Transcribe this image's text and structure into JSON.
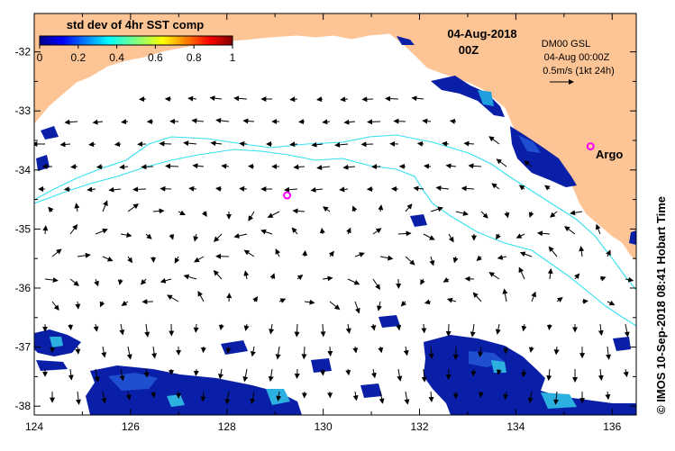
{
  "map": {
    "colorbar_title": "std dev of 4hr SST comp",
    "colorbar_ticks": [
      "0",
      "0.2",
      "0.4",
      "0.6",
      "0.8",
      "1"
    ],
    "colorbar_min": 0,
    "colorbar_max": 1,
    "date_title": "04-Aug-2018",
    "time_title": "00Z",
    "model_name": "DM00 GSL",
    "model_time": "04-Aug 00:00Z",
    "scale_label": "0.5m/s (1kt 24h)",
    "argo_label": "Argo",
    "copyright": "© IMOS 10-Sep-2018 08:41 Hobart Time",
    "lon_ticks": [
      "124",
      "126",
      "128",
      "130",
      "132",
      "134",
      "136"
    ],
    "lat_ticks": [
      "-32",
      "-33",
      "-34",
      "-35",
      "-36",
      "-37",
      "-38"
    ],
    "lon_range": [
      124,
      136.5
    ],
    "lat_range": [
      -38.15,
      -31.35
    ],
    "argo_floats": [
      {
        "lon": 129.25,
        "lat": -34.43
      },
      {
        "lon": 135.55,
        "lat": -33.6
      }
    ],
    "colors": {
      "land": "#fdc596",
      "coast": "#ffffff",
      "contour": "#33e0f0",
      "argo": "#ff00ff"
    }
  }
}
